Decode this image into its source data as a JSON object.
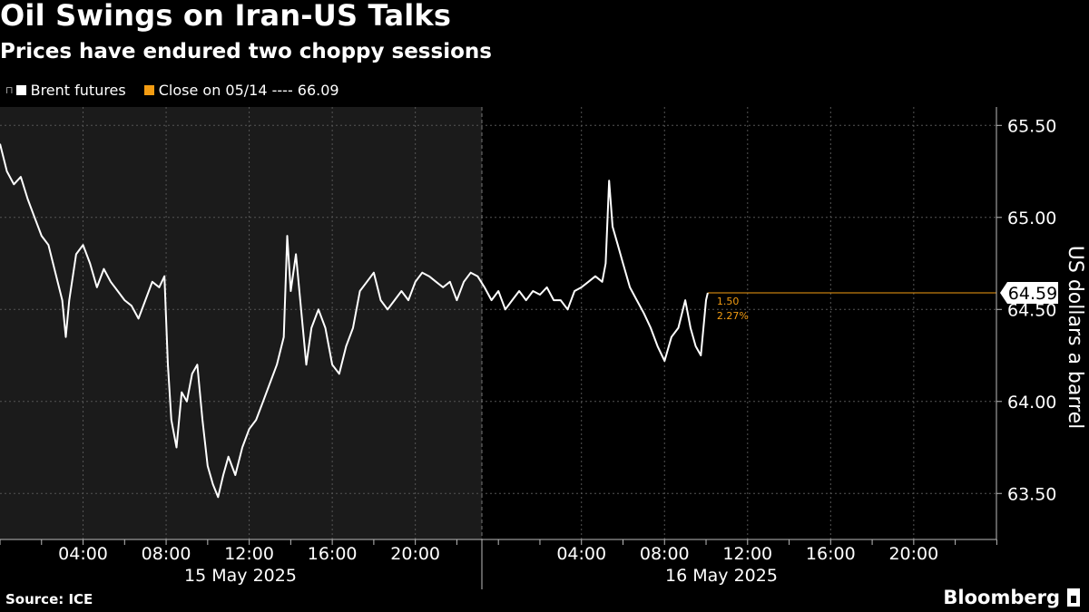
{
  "header": {
    "title": "Oil Swings on Iran-US Talks",
    "subtitle": "Prices have endured two choppy sessions"
  },
  "footer": {
    "source": "Source: ICE",
    "brand": "Bloomberg"
  },
  "colors": {
    "background": "#000000",
    "shaded_session": "#1b1b1b",
    "series": "#ffffff",
    "close_line": "#f39c12",
    "grid": "#555555"
  },
  "chart_data": {
    "type": "line",
    "title": "Oil Swings on Iran-US Talks",
    "subtitle": "Prices have endured two choppy sessions",
    "ylabel": "US dollars a barrel",
    "ylim": [
      63.25,
      65.6
    ],
    "y_ticks": [
      63.5,
      64.0,
      64.5,
      65.0,
      65.5
    ],
    "y_tick_labels": [
      "63.50",
      "64.00",
      "64.50",
      "65.00",
      "65.50"
    ],
    "x_range": [
      "2025-05-15 00:00",
      "2025-05-16 23:59"
    ],
    "x_ticks": [
      "2025-05-15 04:00",
      "2025-05-15 08:00",
      "2025-05-15 12:00",
      "2025-05-15 16:00",
      "2025-05-15 20:00",
      "2025-05-16 04:00",
      "2025-05-16 08:00",
      "2025-05-16 12:00",
      "2025-05-16 16:00",
      "2025-05-16 20:00"
    ],
    "x_tick_labels": [
      "04:00",
      "08:00",
      "12:00",
      "16:00",
      "20:00",
      "04:00",
      "08:00",
      "12:00",
      "16:00",
      "20:00"
    ],
    "day_labels": [
      "15 May 2025",
      "16 May 2025"
    ],
    "legend": {
      "series_label": "Brent futures",
      "close_label": "Close on 05/14 ---- 66.09"
    },
    "series": [
      {
        "name": "Brent futures",
        "points": [
          [
            "2025-05-15 00:00",
            65.4
          ],
          [
            "2025-05-15 00:20",
            65.25
          ],
          [
            "2025-05-15 00:40",
            65.18
          ],
          [
            "2025-05-15 01:00",
            65.22
          ],
          [
            "2025-05-15 01:20",
            65.1
          ],
          [
            "2025-05-15 01:40",
            65.0
          ],
          [
            "2025-05-15 02:00",
            64.9
          ],
          [
            "2025-05-15 02:20",
            64.85
          ],
          [
            "2025-05-15 02:40",
            64.7
          ],
          [
            "2025-05-15 03:00",
            64.55
          ],
          [
            "2025-05-15 03:10",
            64.35
          ],
          [
            "2025-05-15 03:20",
            64.55
          ],
          [
            "2025-05-15 03:40",
            64.8
          ],
          [
            "2025-05-15 04:00",
            64.85
          ],
          [
            "2025-05-15 04:20",
            64.75
          ],
          [
            "2025-05-15 04:40",
            64.62
          ],
          [
            "2025-05-15 05:00",
            64.72
          ],
          [
            "2025-05-15 05:20",
            64.65
          ],
          [
            "2025-05-15 05:40",
            64.6
          ],
          [
            "2025-05-15 06:00",
            64.55
          ],
          [
            "2025-05-15 06:20",
            64.52
          ],
          [
            "2025-05-15 06:40",
            64.45
          ],
          [
            "2025-05-15 07:00",
            64.55
          ],
          [
            "2025-05-15 07:20",
            64.65
          ],
          [
            "2025-05-15 07:40",
            64.62
          ],
          [
            "2025-05-15 07:55",
            64.68
          ],
          [
            "2025-05-15 08:05",
            64.2
          ],
          [
            "2025-05-15 08:15",
            63.9
          ],
          [
            "2025-05-15 08:30",
            63.75
          ],
          [
            "2025-05-15 08:45",
            64.05
          ],
          [
            "2025-05-15 09:00",
            64.0
          ],
          [
            "2025-05-15 09:15",
            64.15
          ],
          [
            "2025-05-15 09:30",
            64.2
          ],
          [
            "2025-05-15 09:45",
            63.9
          ],
          [
            "2025-05-15 10:00",
            63.65
          ],
          [
            "2025-05-15 10:15",
            63.55
          ],
          [
            "2025-05-15 10:30",
            63.48
          ],
          [
            "2025-05-15 10:45",
            63.6
          ],
          [
            "2025-05-15 11:00",
            63.7
          ],
          [
            "2025-05-15 11:20",
            63.6
          ],
          [
            "2025-05-15 11:40",
            63.75
          ],
          [
            "2025-05-15 12:00",
            63.85
          ],
          [
            "2025-05-15 12:20",
            63.9
          ],
          [
            "2025-05-15 12:40",
            64.0
          ],
          [
            "2025-05-15 13:00",
            64.1
          ],
          [
            "2025-05-15 13:20",
            64.2
          ],
          [
            "2025-05-15 13:40",
            64.35
          ],
          [
            "2025-05-15 13:50",
            64.9
          ],
          [
            "2025-05-15 14:00",
            64.6
          ],
          [
            "2025-05-15 14:15",
            64.8
          ],
          [
            "2025-05-15 14:30",
            64.5
          ],
          [
            "2025-05-15 14:45",
            64.2
          ],
          [
            "2025-05-15 15:00",
            64.4
          ],
          [
            "2025-05-15 15:20",
            64.5
          ],
          [
            "2025-05-15 15:40",
            64.4
          ],
          [
            "2025-05-15 16:00",
            64.2
          ],
          [
            "2025-05-15 16:20",
            64.15
          ],
          [
            "2025-05-15 16:40",
            64.3
          ],
          [
            "2025-05-15 17:00",
            64.4
          ],
          [
            "2025-05-15 17:20",
            64.6
          ],
          [
            "2025-05-15 17:40",
            64.65
          ],
          [
            "2025-05-15 18:00",
            64.7
          ],
          [
            "2025-05-15 18:20",
            64.55
          ],
          [
            "2025-05-15 18:40",
            64.5
          ],
          [
            "2025-05-15 19:00",
            64.55
          ],
          [
            "2025-05-15 19:20",
            64.6
          ],
          [
            "2025-05-15 19:40",
            64.55
          ],
          [
            "2025-05-15 20:00",
            64.65
          ],
          [
            "2025-05-15 20:20",
            64.7
          ],
          [
            "2025-05-15 20:40",
            64.68
          ],
          [
            "2025-05-15 21:00",
            64.65
          ],
          [
            "2025-05-15 21:20",
            64.62
          ],
          [
            "2025-05-15 21:40",
            64.65
          ],
          [
            "2025-05-15 22:00",
            64.55
          ],
          [
            "2025-05-15 22:20",
            64.65
          ],
          [
            "2025-05-15 22:40",
            64.7
          ],
          [
            "2025-05-15 23:00",
            64.68
          ],
          [
            "2025-05-15 23:20",
            64.62
          ],
          [
            "2025-05-15 23:40",
            64.55
          ],
          [
            "2025-05-16 00:00",
            64.6
          ],
          [
            "2025-05-16 00:20",
            64.5
          ],
          [
            "2025-05-16 00:40",
            64.55
          ],
          [
            "2025-05-16 01:00",
            64.6
          ],
          [
            "2025-05-16 01:20",
            64.55
          ],
          [
            "2025-05-16 01:40",
            64.6
          ],
          [
            "2025-05-16 02:00",
            64.58
          ],
          [
            "2025-05-16 02:20",
            64.62
          ],
          [
            "2025-05-16 02:40",
            64.55
          ],
          [
            "2025-05-16 03:00",
            64.55
          ],
          [
            "2025-05-16 03:20",
            64.5
          ],
          [
            "2025-05-16 03:40",
            64.6
          ],
          [
            "2025-05-16 04:00",
            64.62
          ],
          [
            "2025-05-16 04:20",
            64.65
          ],
          [
            "2025-05-16 04:40",
            64.68
          ],
          [
            "2025-05-16 05:00",
            64.65
          ],
          [
            "2025-05-16 05:10",
            64.75
          ],
          [
            "2025-05-16 05:20",
            65.2
          ],
          [
            "2025-05-16 05:30",
            64.95
          ],
          [
            "2025-05-16 05:45",
            64.85
          ],
          [
            "2025-05-16 06:00",
            64.75
          ],
          [
            "2025-05-16 06:20",
            64.62
          ],
          [
            "2025-05-16 06:40",
            64.55
          ],
          [
            "2025-05-16 07:00",
            64.48
          ],
          [
            "2025-05-16 07:20",
            64.4
          ],
          [
            "2025-05-16 07:40",
            64.3
          ],
          [
            "2025-05-16 08:00",
            64.22
          ],
          [
            "2025-05-16 08:20",
            64.35
          ],
          [
            "2025-05-16 08:40",
            64.4
          ],
          [
            "2025-05-16 09:00",
            64.55
          ],
          [
            "2025-05-16 09:15",
            64.4
          ],
          [
            "2025-05-16 09:30",
            64.3
          ],
          [
            "2025-05-16 09:45",
            64.25
          ],
          [
            "2025-05-16 10:00",
            64.55
          ],
          [
            "2025-05-16 10:05",
            64.59
          ]
        ]
      }
    ],
    "annotations": [
      {
        "label": "64.59",
        "value": 64.59,
        "kind": "last-price"
      },
      {
        "label": "1.50",
        "kind": "change"
      },
      {
        "label": "2.27%",
        "kind": "change-percent"
      }
    ]
  }
}
